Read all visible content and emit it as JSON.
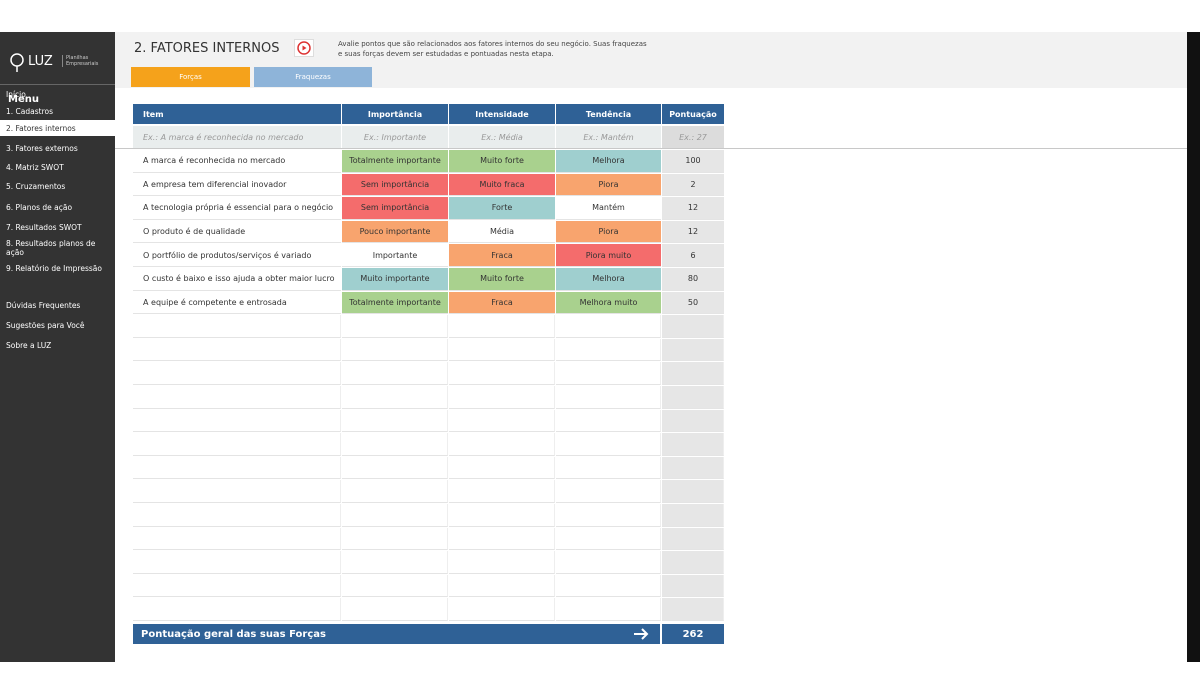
{
  "sidebar": {
    "logo": "LUZ",
    "logo_subtitle": "Planilhas Empresariais",
    "menu_title": "Menu",
    "active_item": 2,
    "items": [
      "Início",
      "1. Cadastros",
      "2. Fatores internos",
      "3. Fatores externos",
      "4. Matriz SWOT",
      "5. Cruzamentos",
      "6. Planos de ação",
      "7. Resultados SWOT",
      "8. Resultados planos de ação",
      "9. Relatório de Impressão"
    ],
    "extra_items": [
      "Dúvidas Frequentes",
      "Sugestões para Você",
      "Sobre a LUZ"
    ]
  },
  "header": {
    "title": "2. FATORES INTERNOS",
    "description": "Avalie pontos que são relacionados aos fatores internos do seu negócio. Suas fraquezas e suas forças devem ser estudadas e pontuadas nesta etapa.",
    "tabs": [
      {
        "label": "Forças",
        "color": "#f5a21b"
      },
      {
        "label": "Fraquezas",
        "color": "#8eb4d9"
      }
    ]
  },
  "table": {
    "columns": [
      "Item",
      "Importância",
      "Intensidade",
      "Tendência",
      "Pontuação"
    ],
    "example": [
      "Ex.: A marca é reconhecida no mercado",
      "Ex.: Importante",
      "Ex.: Média",
      "Ex.: Mantém",
      "Ex.: 27"
    ],
    "rows": [
      {
        "item": "A marca é reconhecida no mercado",
        "importancia": {
          "text": "Totalmente importante",
          "color": "#a9d18e"
        },
        "intensidade": {
          "text": "Muito forte",
          "color": "#a9d18e"
        },
        "tendencia": {
          "text": "Melhora",
          "color": "#9fcfcf"
        },
        "pontuacao": 100
      },
      {
        "item": "A empresa tem diferencial inovador",
        "importancia": {
          "text": "Sem importância",
          "color": "#f46c6c"
        },
        "intensidade": {
          "text": "Muito fraca",
          "color": "#f46c6c"
        },
        "tendencia": {
          "text": "Piora",
          "color": "#f8a46e"
        },
        "pontuacao": 2
      },
      {
        "item": "A tecnologia própria é essencial para o negócio",
        "importancia": {
          "text": "Sem importância",
          "color": "#f46c6c"
        },
        "intensidade": {
          "text": "Forte",
          "color": "#9fcfcf"
        },
        "tendencia": {
          "text": "Mantém",
          "color": "#ffffff"
        },
        "pontuacao": 12
      },
      {
        "item": "O produto é de qualidade",
        "importancia": {
          "text": "Pouco importante",
          "color": "#f8a46e"
        },
        "intensidade": {
          "text": "Média",
          "color": "#ffffff"
        },
        "tendencia": {
          "text": "Piora",
          "color": "#f8a46e"
        },
        "pontuacao": 12
      },
      {
        "item": "O portfólio de produtos/serviços é variado",
        "importancia": {
          "text": "Importante",
          "color": "#ffffff"
        },
        "intensidade": {
          "text": "Fraca",
          "color": "#f8a46e"
        },
        "tendencia": {
          "text": "Piora muito",
          "color": "#f46c6c"
        },
        "pontuacao": 6
      },
      {
        "item": "O custo é baixo e isso ajuda a obter maior lucro",
        "importancia": {
          "text": "Muito importante",
          "color": "#9fcfcf"
        },
        "intensidade": {
          "text": "Muito forte",
          "color": "#a9d18e"
        },
        "tendencia": {
          "text": "Melhora",
          "color": "#9fcfcf"
        },
        "pontuacao": 80
      },
      {
        "item": "A equipe é competente e entrosada",
        "importancia": {
          "text": "Totalmente importante",
          "color": "#a9d18e"
        },
        "intensidade": {
          "text": "Fraca",
          "color": "#f8a46e"
        },
        "tendencia": {
          "text": "Melhora muito",
          "color": "#a9d18e"
        },
        "pontuacao": 50
      }
    ],
    "total_label": "Pontuação geral das suas Forças",
    "total": 262
  }
}
